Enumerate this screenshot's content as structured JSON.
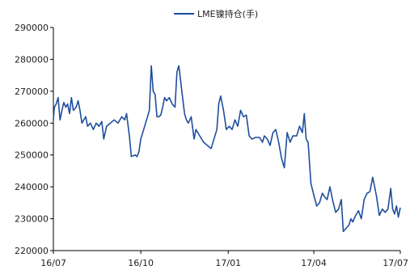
{
  "chart_data": {
    "type": "line",
    "title": "",
    "xlabel": "",
    "ylabel": "",
    "ylim": [
      220000,
      290000
    ],
    "y_ticks": [
      220000,
      230000,
      240000,
      250000,
      260000,
      270000,
      280000,
      290000
    ],
    "y_tick_labels": [
      "220000",
      "230000",
      "240000",
      "250000",
      "260000",
      "270000",
      "280000",
      "290000"
    ],
    "x_range": [
      "2016-07-01",
      "2017-07-01"
    ],
    "x_ticks": [
      "2016-07-01",
      "2016-10-01",
      "2017-01-01",
      "2017-04-01",
      "2017-07-01"
    ],
    "x_tick_labels": [
      "16/07",
      "16/10",
      "17/01",
      "17/04",
      "17/07"
    ],
    "grid": false,
    "legend_position": "top-center",
    "line_color": "#1f4e9c",
    "series": [
      {
        "name": "LME镍持仓(手)",
        "color": "#1f4e9c",
        "points": [
          [
            "2016-07-01",
            261000
          ],
          [
            "2016-07-02",
            265000
          ],
          [
            "2016-07-04",
            266000
          ],
          [
            "2016-07-06",
            268000
          ],
          [
            "2016-07-08",
            261000
          ],
          [
            "2016-07-10",
            264000
          ],
          [
            "2016-07-12",
            266500
          ],
          [
            "2016-07-14",
            265000
          ],
          [
            "2016-07-16",
            266000
          ],
          [
            "2016-07-18",
            263000
          ],
          [
            "2016-07-20",
            268000
          ],
          [
            "2016-07-22",
            264000
          ],
          [
            "2016-07-25",
            265000
          ],
          [
            "2016-07-27",
            267000
          ],
          [
            "2016-07-29",
            264000
          ],
          [
            "2016-07-31",
            260000
          ],
          [
            "2016-08-02",
            261000
          ],
          [
            "2016-08-04",
            262000
          ],
          [
            "2016-08-06",
            259000
          ],
          [
            "2016-08-09",
            260000
          ],
          [
            "2016-08-12",
            258000
          ],
          [
            "2016-08-15",
            260000
          ],
          [
            "2016-08-18",
            259000
          ],
          [
            "2016-08-21",
            260500
          ],
          [
            "2016-08-23",
            255000
          ],
          [
            "2016-08-26",
            259000
          ],
          [
            "2016-08-30",
            260000
          ],
          [
            "2016-09-03",
            261000
          ],
          [
            "2016-09-07",
            260000
          ],
          [
            "2016-09-11",
            262000
          ],
          [
            "2016-09-14",
            261000
          ],
          [
            "2016-09-16",
            263000
          ],
          [
            "2016-09-19",
            256000
          ],
          [
            "2016-09-21",
            249500
          ],
          [
            "2016-09-25",
            250000
          ],
          [
            "2016-09-27",
            249500
          ],
          [
            "2016-09-29",
            251000
          ],
          [
            "2016-10-01",
            255000
          ],
          [
            "2016-10-04",
            258000
          ],
          [
            "2016-10-06",
            260000
          ],
          [
            "2016-10-08",
            262000
          ],
          [
            "2016-10-10",
            264000
          ],
          [
            "2016-10-12",
            278000
          ],
          [
            "2016-10-14",
            270000
          ],
          [
            "2016-10-16",
            269000
          ],
          [
            "2016-10-18",
            262000
          ],
          [
            "2016-10-20",
            262000
          ],
          [
            "2016-10-22",
            262500
          ],
          [
            "2016-10-24",
            265000
          ],
          [
            "2016-10-26",
            268000
          ],
          [
            "2016-10-28",
            267000
          ],
          [
            "2016-10-31",
            268000
          ],
          [
            "2016-11-03",
            266000
          ],
          [
            "2016-11-06",
            265000
          ],
          [
            "2016-11-08",
            276000
          ],
          [
            "2016-11-10",
            278000
          ],
          [
            "2016-11-12",
            273000
          ],
          [
            "2016-11-14",
            268000
          ],
          [
            "2016-11-16",
            263000
          ],
          [
            "2016-11-18",
            261000
          ],
          [
            "2016-11-20",
            260000
          ],
          [
            "2016-11-23",
            262000
          ],
          [
            "2016-11-26",
            255000
          ],
          [
            "2016-11-28",
            258000
          ],
          [
            "2016-12-02",
            256000
          ],
          [
            "2016-12-06",
            254000
          ],
          [
            "2016-12-10",
            253000
          ],
          [
            "2016-12-14",
            252000
          ],
          [
            "2016-12-17",
            255000
          ],
          [
            "2016-12-20",
            258000
          ],
          [
            "2016-12-22",
            266000
          ],
          [
            "2016-12-24",
            268500
          ],
          [
            "2016-12-27",
            264000
          ],
          [
            "2016-12-30",
            258000
          ],
          [
            "2017-01-02",
            259000
          ],
          [
            "2017-01-05",
            258000
          ],
          [
            "2017-01-08",
            261000
          ],
          [
            "2017-01-11",
            259000
          ],
          [
            "2017-01-14",
            264000
          ],
          [
            "2017-01-17",
            262000
          ],
          [
            "2017-01-20",
            262500
          ],
          [
            "2017-01-23",
            256000
          ],
          [
            "2017-01-26",
            255000
          ],
          [
            "2017-01-30",
            255500
          ],
          [
            "2017-02-03",
            255500
          ],
          [
            "2017-02-06",
            254000
          ],
          [
            "2017-02-08",
            256000
          ],
          [
            "2017-02-11",
            255000
          ],
          [
            "2017-02-14",
            253000
          ],
          [
            "2017-02-17",
            257000
          ],
          [
            "2017-02-20",
            258000
          ],
          [
            "2017-02-23",
            254000
          ],
          [
            "2017-02-26",
            249000
          ],
          [
            "2017-03-01",
            246000
          ],
          [
            "2017-03-04",
            257000
          ],
          [
            "2017-03-07",
            254000
          ],
          [
            "2017-03-10",
            256000
          ],
          [
            "2017-03-14",
            256000
          ],
          [
            "2017-03-17",
            259000
          ],
          [
            "2017-03-20",
            257000
          ],
          [
            "2017-03-22",
            263000
          ],
          [
            "2017-03-24",
            255000
          ],
          [
            "2017-03-26",
            254000
          ],
          [
            "2017-03-29",
            241000
          ],
          [
            "2017-04-01",
            237500
          ],
          [
            "2017-04-04",
            234000
          ],
          [
            "2017-04-07",
            235000
          ],
          [
            "2017-04-10",
            238000
          ],
          [
            "2017-04-12",
            237000
          ],
          [
            "2017-04-15",
            236000
          ],
          [
            "2017-04-18",
            240000
          ],
          [
            "2017-04-21",
            235500
          ],
          [
            "2017-04-24",
            232000
          ],
          [
            "2017-04-27",
            233000
          ],
          [
            "2017-04-30",
            236000
          ],
          [
            "2017-05-02",
            226000
          ],
          [
            "2017-05-05",
            227000
          ],
          [
            "2017-05-08",
            228000
          ],
          [
            "2017-05-10",
            230000
          ],
          [
            "2017-05-12",
            229000
          ],
          [
            "2017-05-15",
            231000
          ],
          [
            "2017-05-18",
            232500
          ],
          [
            "2017-05-21",
            230000
          ],
          [
            "2017-05-24",
            236000
          ],
          [
            "2017-05-27",
            238000
          ],
          [
            "2017-05-30",
            238500
          ],
          [
            "2017-06-02",
            243000
          ],
          [
            "2017-06-04",
            240000
          ],
          [
            "2017-06-06",
            237000
          ],
          [
            "2017-06-09",
            231000
          ],
          [
            "2017-06-12",
            233000
          ],
          [
            "2017-06-15",
            232000
          ],
          [
            "2017-06-18",
            233000
          ],
          [
            "2017-06-21",
            239500
          ],
          [
            "2017-06-23",
            233000
          ],
          [
            "2017-06-25",
            231500
          ],
          [
            "2017-06-27",
            234000
          ],
          [
            "2017-06-29",
            230500
          ],
          [
            "2017-07-01",
            233500
          ]
        ]
      }
    ]
  }
}
